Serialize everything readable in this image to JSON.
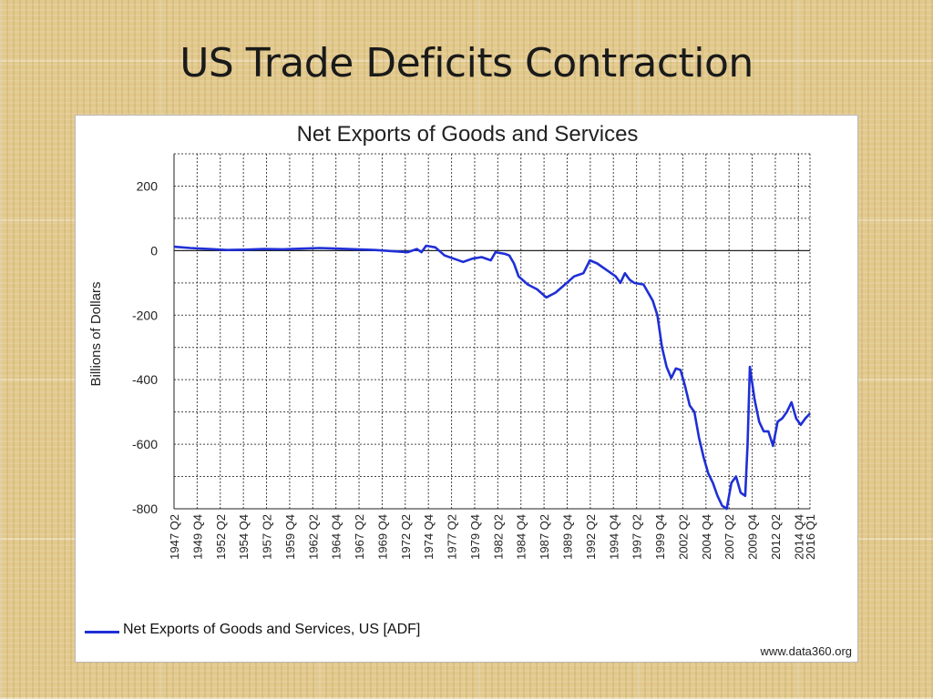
{
  "slide": {
    "title": "US Trade Deficits Contraction"
  },
  "chart_data": {
    "type": "line",
    "title": "Net Exports of Goods and Services",
    "ylabel": "Billions of Dollars",
    "xlabel": "",
    "ylim": [
      -800,
      300
    ],
    "yticks": [
      200,
      0,
      -200,
      -400,
      -600,
      -800
    ],
    "xlim": [
      1947.25,
      2016.0
    ],
    "grid": true,
    "legend_position": "bottom",
    "x_tick_labels": [
      "1947 Q2",
      "1949 Q4",
      "1952 Q2",
      "1954 Q4",
      "1957 Q2",
      "1959 Q4",
      "1962 Q2",
      "1964 Q4",
      "1967 Q2",
      "1969 Q4",
      "1972 Q2",
      "1974 Q4",
      "1977 Q2",
      "1979 Q4",
      "1982 Q2",
      "1984 Q4",
      "1987 Q2",
      "1989 Q4",
      "1992 Q2",
      "1994 Q4",
      "1997 Q2",
      "1999 Q4",
      "2002 Q2",
      "2004 Q4",
      "2007 Q2",
      "2009 Q4",
      "2012 Q2",
      "2014 Q4",
      "2016 Q1"
    ],
    "x_tick_values": [
      1947.25,
      1949.75,
      1952.25,
      1954.75,
      1957.25,
      1959.75,
      1962.25,
      1964.75,
      1967.25,
      1969.75,
      1972.25,
      1974.75,
      1977.25,
      1979.75,
      1982.25,
      1984.75,
      1987.25,
      1989.75,
      1992.25,
      1994.75,
      1997.25,
      1999.75,
      2002.25,
      2004.75,
      2007.25,
      2009.75,
      2012.25,
      2014.75,
      2016.0
    ],
    "series": [
      {
        "name": "Net Exports of Goods and Services, US [ADF]",
        "color": "#1f2fd6",
        "x": [
          1947.25,
          1949,
          1951,
          1953,
          1955,
          1957,
          1959,
          1961,
          1963,
          1965,
          1967,
          1969,
          1971,
          1972.5,
          1973.5,
          1974,
          1974.5,
          1975.5,
          1976.5,
          1977.5,
          1978.5,
          1979.5,
          1980.5,
          1981.5,
          1982,
          1983,
          1983.5,
          1984,
          1984.5,
          1985.5,
          1986.5,
          1987.5,
          1988.5,
          1989.5,
          1990.5,
          1991.5,
          1992.2,
          1993,
          1994,
          1995,
          1995.5,
          1996,
          1996.5,
          1997,
          1998,
          1999,
          1999.5,
          2000,
          2000.5,
          2001,
          2001.5,
          2002,
          2002.5,
          2003,
          2003.5,
          2004,
          2004.5,
          2005,
          2005.5,
          2006,
          2006.5,
          2007,
          2007.5,
          2008,
          2008.5,
          2009,
          2009.25,
          2009.5,
          2010,
          2010.5,
          2011,
          2011.5,
          2012,
          2012.5,
          2013,
          2013.5,
          2014,
          2014.5,
          2015,
          2015.5,
          2016
        ],
        "y": [
          12,
          8,
          5,
          2,
          3,
          5,
          4,
          6,
          8,
          6,
          4,
          2,
          -2,
          -5,
          5,
          -5,
          15,
          10,
          -15,
          -25,
          -35,
          -25,
          -20,
          -30,
          -5,
          -10,
          -15,
          -40,
          -80,
          -105,
          -120,
          -145,
          -130,
          -105,
          -80,
          -70,
          -30,
          -40,
          -60,
          -80,
          -100,
          -70,
          -90,
          -100,
          -105,
          -155,
          -200,
          -300,
          -360,
          -395,
          -365,
          -370,
          -420,
          -480,
          -500,
          -580,
          -640,
          -690,
          -720,
          -760,
          -790,
          -800,
          -720,
          -700,
          -750,
          -760,
          -600,
          -360,
          -460,
          -530,
          -560,
          -560,
          -605,
          -530,
          -520,
          -500,
          -470,
          -520,
          -540,
          -520,
          -505
        ]
      }
    ],
    "source": "www.data360.org"
  }
}
